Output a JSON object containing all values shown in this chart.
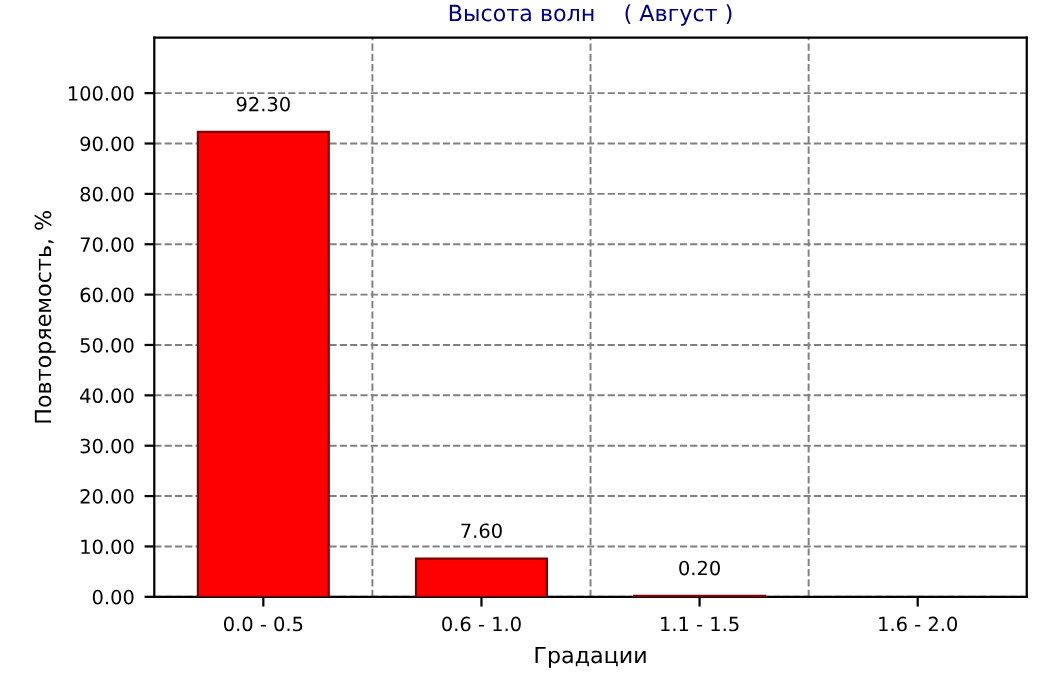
{
  "chart_data": {
    "type": "bar",
    "title": "Высота волн    ( Август )",
    "xlabel": "Градации",
    "ylabel": "Повторяемость, %",
    "categories": [
      "0.0 - 0.5",
      "0.6 - 1.0",
      "1.1 - 1.5",
      "1.6 - 2.0"
    ],
    "values": [
      92.3,
      7.6,
      0.2,
      null
    ],
    "value_labels": [
      "92.30",
      "7.60",
      "0.20",
      null
    ],
    "color": "#ff0000",
    "ylim": [
      0,
      111
    ],
    "yticks": [
      {
        "value": 0,
        "label": "0.00"
      },
      {
        "value": 10,
        "label": "10.00"
      },
      {
        "value": 20,
        "label": "20.00"
      },
      {
        "value": 30,
        "label": "30.00"
      },
      {
        "value": 40,
        "label": "40.00"
      },
      {
        "value": 50,
        "label": "50.00"
      },
      {
        "value": 60,
        "label": "60.00"
      },
      {
        "value": 70,
        "label": "70.00"
      },
      {
        "value": 80,
        "label": "80.00"
      },
      {
        "value": 90,
        "label": "90.00"
      },
      {
        "value": 100,
        "label": "100.00"
      }
    ],
    "grid": true,
    "line_style": "dashed"
  }
}
